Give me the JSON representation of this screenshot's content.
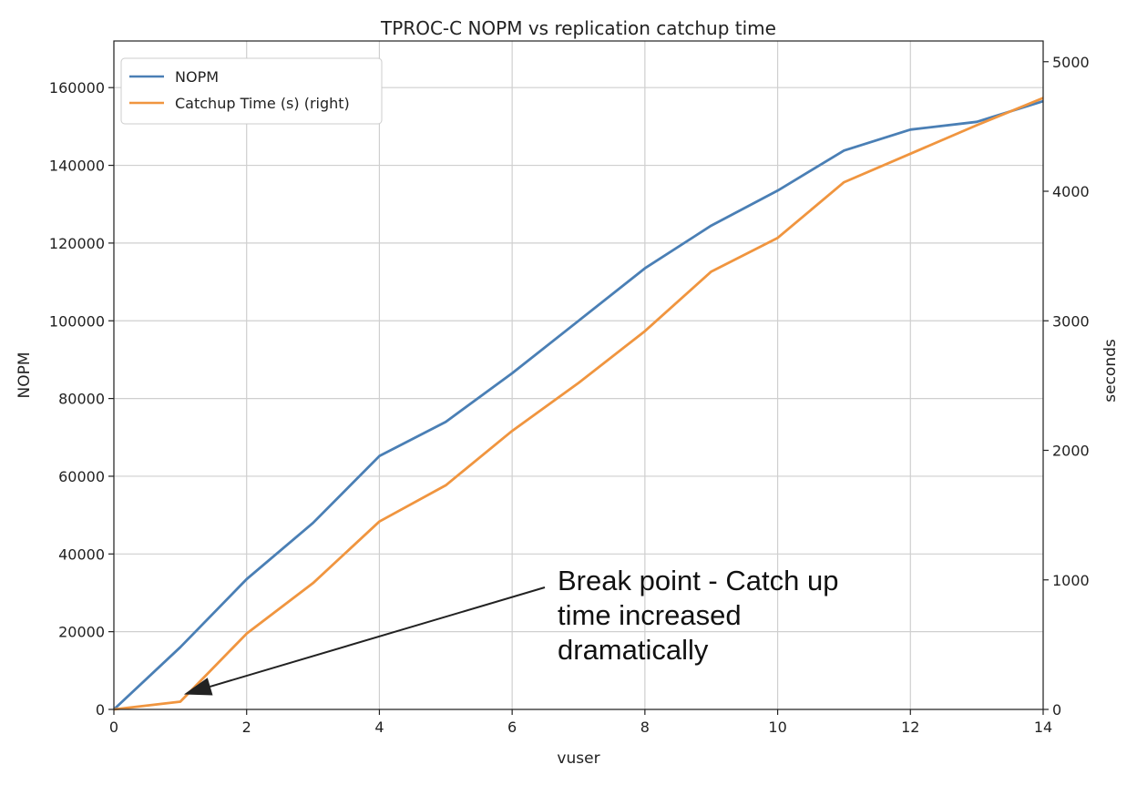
{
  "chart_data": {
    "type": "line",
    "title": "TPROC-C NOPM vs replication catchup time",
    "xlabel": "vuser",
    "ylabel": "NOPM",
    "y2label": "seconds",
    "xlim": [
      0,
      14
    ],
    "ylim": [
      0,
      172000
    ],
    "y2lim": [
      0,
      5160
    ],
    "x_ticks": [
      0,
      2,
      4,
      6,
      8,
      10,
      12,
      14
    ],
    "y_ticks": [
      0,
      20000,
      40000,
      60000,
      80000,
      100000,
      120000,
      140000,
      160000
    ],
    "y2_ticks": [
      0,
      1000,
      2000,
      3000,
      4000,
      5000
    ],
    "grid": true,
    "legend_position": "top-left",
    "x": [
      0,
      1,
      2,
      3,
      4,
      5,
      6,
      7,
      8,
      9,
      10,
      11,
      12,
      13,
      14
    ],
    "series": [
      {
        "name": "NOPM",
        "axis": "left",
        "color": "#4a7fb5",
        "values": [
          0,
          16000,
          33500,
          48000,
          65200,
          74000,
          86500,
          100000,
          113500,
          124500,
          133500,
          143800,
          149200,
          151200,
          156500
        ]
      },
      {
        "name": "Catchup Time (s) (right)",
        "axis": "right",
        "color": "#f0953f",
        "values": [
          0,
          60,
          585,
          975,
          1450,
          1730,
          2150,
          2520,
          2920,
          3380,
          3640,
          4070,
          4290,
          4510,
          4720
        ]
      }
    ],
    "annotation": {
      "lines": [
        "Break point - Catch up",
        "time increased",
        "dramatically"
      ],
      "target_x": 1,
      "target_y2": 60
    }
  }
}
